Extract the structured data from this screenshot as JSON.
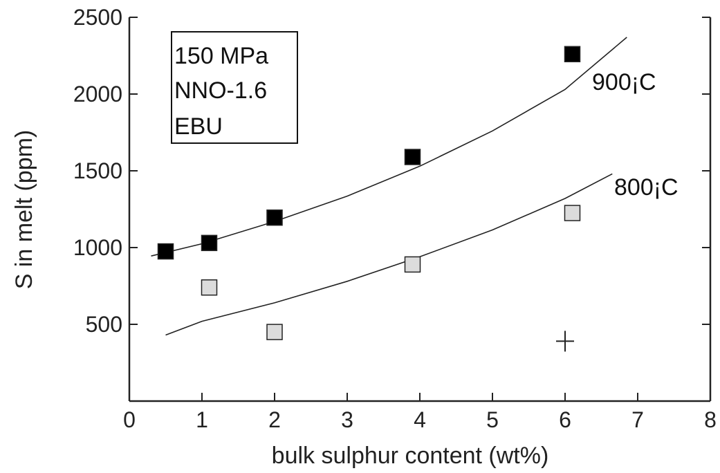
{
  "chart_data": {
    "type": "scatter",
    "xlabel": "bulk sulphur content (wt%)",
    "ylabel": "S in melt (ppm)",
    "xlim": [
      0,
      8
    ],
    "ylim": [
      0,
      2500
    ],
    "x_ticks": [
      0,
      1,
      2,
      3,
      4,
      5,
      6,
      7,
      8
    ],
    "y_ticks": [
      500,
      1000,
      1500,
      2000,
      2500
    ],
    "grid": false,
    "annotation_box": [
      "150 MPa",
      "NNO-1.6",
      "EBU"
    ],
    "series": [
      {
        "name": "900¡C",
        "marker": "filled-square",
        "color": "#000000",
        "points": [
          [
            0.5,
            975
          ],
          [
            1.1,
            1030
          ],
          [
            2.0,
            1195
          ],
          [
            3.9,
            1590
          ],
          [
            6.1,
            2260
          ]
        ],
        "fit_curve": [
          [
            0.3,
            945
          ],
          [
            1.0,
            1025
          ],
          [
            2.0,
            1170
          ],
          [
            3.0,
            1335
          ],
          [
            4.0,
            1530
          ],
          [
            5.0,
            1760
          ],
          [
            6.0,
            2030
          ],
          [
            6.85,
            2370
          ]
        ]
      },
      {
        "name": "800¡C",
        "marker": "open-square",
        "color": "#dcdcdc",
        "points": [
          [
            1.1,
            740
          ],
          [
            2.0,
            450
          ],
          [
            3.9,
            890
          ],
          [
            6.1,
            1225
          ]
        ],
        "fit_curve": [
          [
            0.5,
            430
          ],
          [
            1.0,
            520
          ],
          [
            2.0,
            640
          ],
          [
            3.0,
            780
          ],
          [
            4.0,
            940
          ],
          [
            5.0,
            1115
          ],
          [
            6.0,
            1320
          ],
          [
            6.65,
            1480
          ]
        ]
      }
    ],
    "extra_markers": [
      {
        "marker": "plus",
        "x": 6.0,
        "y": 390
      }
    ]
  }
}
